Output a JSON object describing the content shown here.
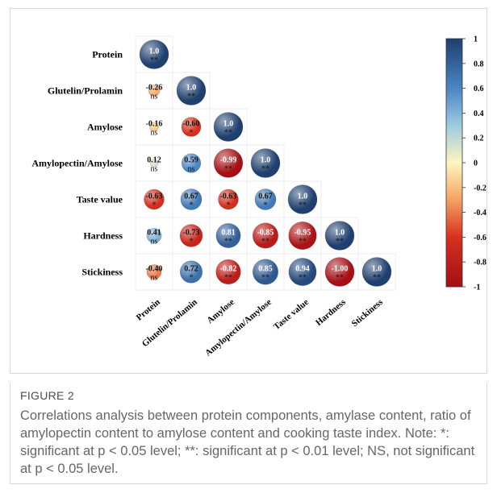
{
  "figure": {
    "label": "FIGURE 2",
    "caption": "Correlations analysis between protein components, amylase content, ratio of amylopectin content to amylose content and cooking taste index. Note: *: significant at p < 0.05 level; **: significant at p < 0.01 level; NS, not significant at p < 0.05 level."
  },
  "chart_data": {
    "type": "heatmap",
    "variables": [
      "Protein",
      "Glutelin/Prolamin",
      "Amylose",
      "Amylopectin/Amylose",
      "Taste value",
      "Hardness",
      "Stickiness"
    ],
    "cells": [
      {
        "row": 0,
        "col": 0,
        "label": "1.0",
        "value": 1.0,
        "sig": "**"
      },
      {
        "row": 1,
        "col": 0,
        "label": "-0.26",
        "value": -0.26,
        "sig": "ns"
      },
      {
        "row": 1,
        "col": 1,
        "label": "1.0",
        "value": 1.0,
        "sig": "**"
      },
      {
        "row": 2,
        "col": 0,
        "label": "-0.16",
        "value": -0.16,
        "sig": "ns"
      },
      {
        "row": 2,
        "col": 1,
        "label": "-0.60",
        "value": -0.6,
        "sig": "*"
      },
      {
        "row": 2,
        "col": 2,
        "label": "1.0",
        "value": 1.0,
        "sig": "**"
      },
      {
        "row": 3,
        "col": 0,
        "label": "0.12",
        "value": 0.12,
        "sig": "ns"
      },
      {
        "row": 3,
        "col": 1,
        "label": "0.59",
        "value": 0.59,
        "sig": "ns"
      },
      {
        "row": 3,
        "col": 2,
        "label": "-0.99",
        "value": -0.99,
        "sig": "**"
      },
      {
        "row": 3,
        "col": 3,
        "label": "1.0",
        "value": 1.0,
        "sig": "**"
      },
      {
        "row": 4,
        "col": 0,
        "label": "-0.63",
        "value": -0.63,
        "sig": "*"
      },
      {
        "row": 4,
        "col": 1,
        "label": "0.67",
        "value": 0.67,
        "sig": "*"
      },
      {
        "row": 4,
        "col": 2,
        "label": "-0.63",
        "value": -0.63,
        "sig": "*"
      },
      {
        "row": 4,
        "col": 3,
        "label": "0.67",
        "value": 0.67,
        "sig": "*"
      },
      {
        "row": 4,
        "col": 4,
        "label": "1.0",
        "value": 1.0,
        "sig": "**"
      },
      {
        "row": 5,
        "col": 0,
        "label": "0.41",
        "value": 0.41,
        "sig": "ns"
      },
      {
        "row": 5,
        "col": 1,
        "label": "-0.73",
        "value": -0.73,
        "sig": "*"
      },
      {
        "row": 5,
        "col": 2,
        "label": "0.81",
        "value": 0.81,
        "sig": "**"
      },
      {
        "row": 5,
        "col": 3,
        "label": "-0.85",
        "value": -0.85,
        "sig": "**"
      },
      {
        "row": 5,
        "col": 4,
        "label": "-0.95",
        "value": -0.95,
        "sig": "**"
      },
      {
        "row": 5,
        "col": 5,
        "label": "1.0",
        "value": 1.0,
        "sig": "**"
      },
      {
        "row": 6,
        "col": 0,
        "label": "-0.40",
        "value": -0.4,
        "sig": "ns"
      },
      {
        "row": 6,
        "col": 1,
        "label": "0.72",
        "value": 0.72,
        "sig": "*"
      },
      {
        "row": 6,
        "col": 2,
        "label": "-0.82",
        "value": -0.82,
        "sig": "**"
      },
      {
        "row": 6,
        "col": 3,
        "label": "0.85",
        "value": 0.85,
        "sig": "**"
      },
      {
        "row": 6,
        "col": 4,
        "label": "0.94",
        "value": 0.94,
        "sig": "**"
      },
      {
        "row": 6,
        "col": 5,
        "label": "-1.00",
        "value": -1.0,
        "sig": "**"
      },
      {
        "row": 6,
        "col": 6,
        "label": "1.0",
        "value": 1.0,
        "sig": "**"
      }
    ],
    "colorbar": {
      "range": [
        -1,
        1
      ],
      "ticks": [
        {
          "value": 1,
          "label": "1"
        },
        {
          "value": 0.8,
          "label": "0.8"
        },
        {
          "value": 0.6,
          "label": "0.6"
        },
        {
          "value": 0.4,
          "label": "0.4"
        },
        {
          "value": 0.2,
          "label": "0.2"
        },
        {
          "value": 0,
          "label": "0"
        },
        {
          "value": -0.2,
          "label": "-0.2"
        },
        {
          "value": -0.4,
          "label": "-0.4"
        },
        {
          "value": -0.6,
          "label": "-0.6"
        },
        {
          "value": -0.8,
          "label": "-0.8"
        },
        {
          "value": -1,
          "label": "-1"
        }
      ],
      "stops": [
        {
          "value": -1,
          "color": "#a50f15"
        },
        {
          "value": -0.6,
          "color": "#d7301f"
        },
        {
          "value": -0.3,
          "color": "#f4a261"
        },
        {
          "value": 0,
          "color": "#fff5c0"
        },
        {
          "value": 0.3,
          "color": "#9ecae1"
        },
        {
          "value": 0.6,
          "color": "#4a86c5"
        },
        {
          "value": 1,
          "color": "#1f3f6e"
        }
      ]
    }
  }
}
